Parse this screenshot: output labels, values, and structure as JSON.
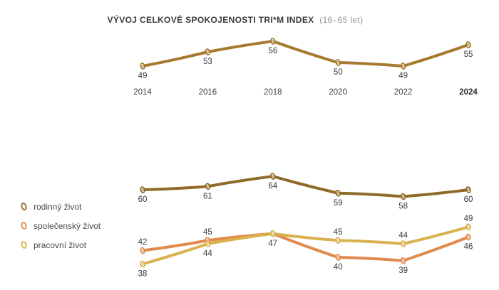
{
  "header": {
    "title": "VÝVOJ CELKOVÉ SPOKOJENOSTI TRI*M INDEX",
    "subtitle": "(16–65 let)"
  },
  "colors": {
    "trim_line": "#a6792f",
    "family_line": "#8f6a29",
    "social_line": "#e08a4e",
    "work_line": "#d9b14e",
    "value_label_text": "#3b3b3b",
    "axis_text": "#3f3f3f",
    "title_text": "#3a3a3a",
    "subtitle_text": "#949494",
    "background": "#ffffff"
  },
  "chart_data": [
    {
      "type": "line",
      "title": "VÝVOJ CELKOVÉ SPOKOJENOSTI TRI*M INDEX",
      "subtitle": "(16–65 let)",
      "categories": [
        "2014",
        "2016",
        "2018",
        "2020",
        "2022",
        "2024"
      ],
      "bold_category": "2024",
      "grid": false,
      "x_axis_visible": true,
      "legend_position": "none",
      "ylim": [
        45,
        58
      ],
      "series": [
        {
          "name": "TRI*M INDEX",
          "values": [
            49,
            53,
            56,
            50,
            49,
            55
          ],
          "color": "#a6792f",
          "label_side": [
            "below",
            "below",
            "below",
            "below",
            "below",
            "below"
          ]
        }
      ]
    },
    {
      "type": "line",
      "title": "",
      "categories": [
        "2014",
        "2016",
        "2018",
        "2020",
        "2022",
        "2024"
      ],
      "grid": false,
      "x_axis_visible": false,
      "legend_position": "left",
      "ylim": [
        34,
        66
      ],
      "series": [
        {
          "name": "rodinný život",
          "values": [
            60,
            61,
            64,
            59,
            58,
            60
          ],
          "color": "#8f6a29",
          "label_side": [
            "below",
            "below",
            "below",
            "below",
            "below",
            "below"
          ]
        },
        {
          "name": "společenský život",
          "values": [
            42,
            45,
            47,
            40,
            39,
            46
          ],
          "color": "#e08a4e",
          "label_side": [
            "above",
            "above",
            "below",
            "below",
            "below",
            "below"
          ]
        },
        {
          "name": "pracovní život",
          "values": [
            38,
            44,
            47,
            45,
            44,
            49
          ],
          "color": "#d9b14e",
          "label_side": [
            "below",
            "below",
            "none",
            "above",
            "above",
            "above"
          ]
        }
      ]
    }
  ]
}
